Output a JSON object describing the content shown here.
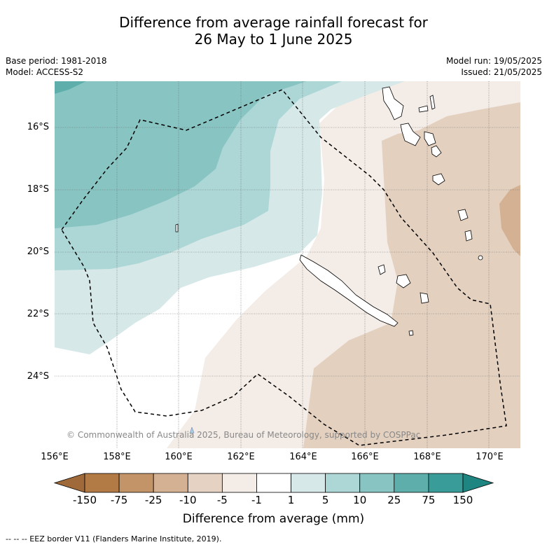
{
  "title": {
    "line1": "Difference from average rainfall forecast for",
    "line2": "26 May to 1 June 2025"
  },
  "meta_left": {
    "base_period": "Base period: 1981-2018",
    "model": "Model: ACCESS-S2"
  },
  "meta_right": {
    "model_run": "Model run: 19/05/2025",
    "issued": "Issued: 21/05/2025"
  },
  "latitude_labels": [
    "16°S",
    "18°S",
    "20°S",
    "22°S",
    "24°S"
  ],
  "longitude_labels": [
    "156°E",
    "158°E",
    "160°E",
    "162°E",
    "164°E",
    "166°E",
    "168°E",
    "170°E"
  ],
  "copyright": "© Commonwealth of Australia 2025, Bureau of Meteorology, supported by COSPPac",
  "colorbar": {
    "ticks": [
      "-150",
      "-75",
      "-25",
      "-10",
      "-5",
      "-1",
      "1",
      "5",
      "10",
      "25",
      "75",
      "150"
    ],
    "colors": [
      "#a0693a",
      "#b27a44",
      "#c39468",
      "#d4b193",
      "#e5d2c2",
      "#f4ece6",
      "#ffffff",
      "#d6e9e8",
      "#acd7d6",
      "#88c4c2",
      "#5eafac",
      "#3a9c98",
      "#1e8581"
    ],
    "label": "Difference from average (mm)"
  },
  "footnote": "--  --  -- EEZ border V11 (Flanders Marine Institute, 2019).",
  "legend_colors": {
    "eez_border": "#000000",
    "gridline": "#666666"
  }
}
